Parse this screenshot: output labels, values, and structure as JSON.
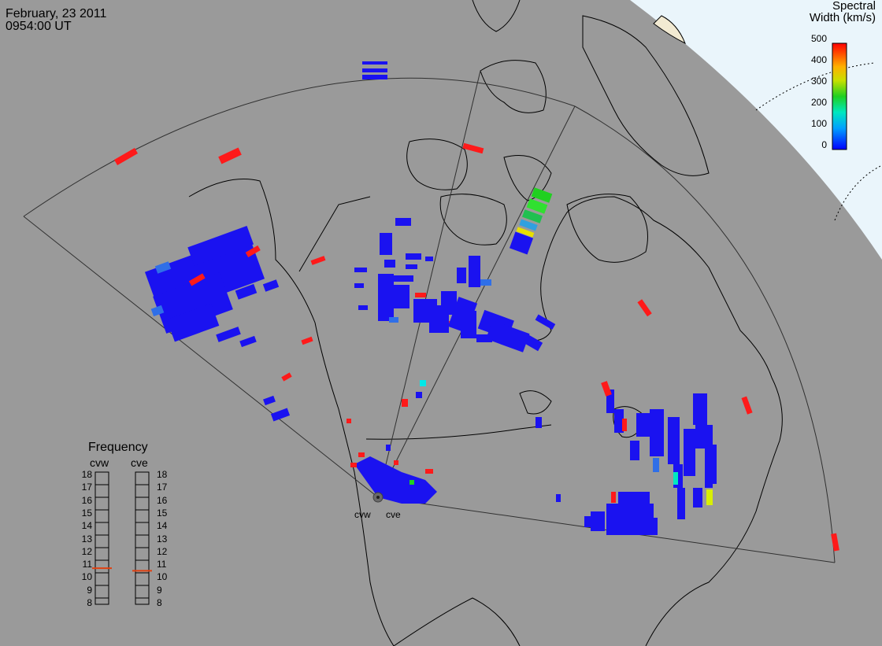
{
  "header": {
    "date": "February, 23 2011",
    "time": "0954:00 UT"
  },
  "colorbar": {
    "title_line1": "Spectral",
    "title_line2": "Width (km/s)",
    "ticks": [
      "500",
      "400",
      "300",
      "200",
      "100",
      "0"
    ]
  },
  "frequency_panel": {
    "title": "Frequency",
    "sites": [
      "cvw",
      "cve"
    ],
    "scale": [
      "18",
      "17",
      "16",
      "15",
      "14",
      "13",
      "12",
      "11",
      "10",
      "9",
      "8"
    ],
    "cvw_value_mhz": 10.8,
    "cve_value_mhz": 10.6
  },
  "radar_sites": [
    "cvw",
    "cve"
  ],
  "colors": {
    "ocean": "#e8f4fb",
    "land": "#9a9a9a",
    "low": "#1a12f0",
    "high": "#ff1a1a"
  }
}
